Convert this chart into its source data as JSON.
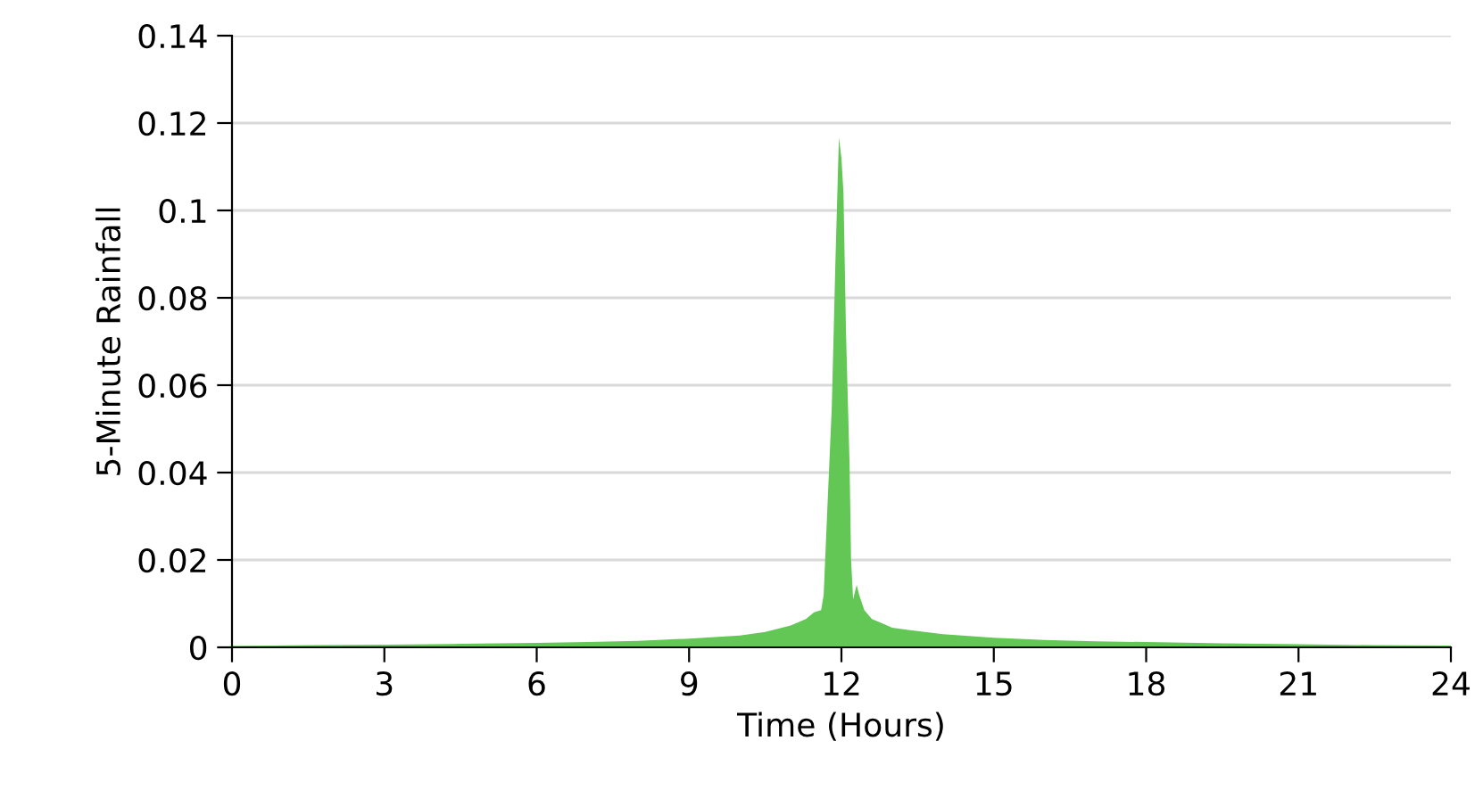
{
  "chart_data": {
    "type": "area",
    "xlabel": "Time (Hours)",
    "ylabel": "5-Minute Rainfall",
    "x": [
      0,
      1.5,
      3,
      4.5,
      6,
      7,
      8,
      9,
      10,
      10.5,
      11,
      11.3,
      11.46,
      11.6,
      11.65,
      11.72,
      11.81,
      11.88,
      11.95,
      12.0,
      12.04,
      12.09,
      12.16,
      12.19,
      12.23,
      12.3,
      12.35,
      12.45,
      12.6,
      12.8,
      13,
      13.5,
      14,
      15,
      16,
      17,
      18,
      19.5,
      21,
      22.5,
      24
    ],
    "series": [
      {
        "color": "#62c754",
        "values": [
          0.0003,
          0.0005,
          0.0006,
          0.0008,
          0.001,
          0.0012,
          0.0015,
          0.002,
          0.0027,
          0.0035,
          0.005,
          0.0065,
          0.008,
          0.0085,
          0.012,
          0.031,
          0.055,
          0.0876,
          0.1167,
          0.112,
          0.104,
          0.072,
          0.042,
          0.02,
          0.011,
          0.0143,
          0.012,
          0.0085,
          0.0065,
          0.0055,
          0.0045,
          0.0037,
          0.003,
          0.0022,
          0.0017,
          0.0014,
          0.0012,
          0.0009,
          0.0007,
          0.0005,
          0.0004
        ]
      }
    ],
    "xlim": [
      0,
      24
    ],
    "xticks": [
      0,
      3,
      6,
      9,
      12,
      15,
      18,
      21,
      24
    ],
    "ylim": [
      0,
      0.14
    ],
    "yticks": [
      0,
      0.02,
      0.04,
      0.06,
      0.08,
      0.1,
      0.12,
      0.14
    ],
    "grid": "y",
    "legend": false
  }
}
